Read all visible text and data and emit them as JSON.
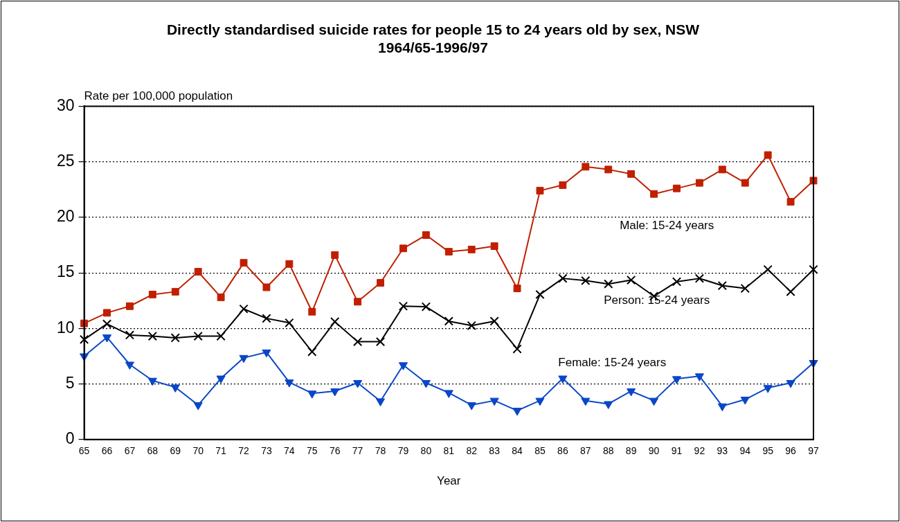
{
  "chart_data": {
    "type": "line",
    "title": "Directly standardised suicide rates for people 15 to 24 years old by sex, NSW\n1964/65-1996/97",
    "xlabel": "Year",
    "ylabel": "Rate per 100,000 population",
    "categories": [
      "65",
      "66",
      "67",
      "68",
      "69",
      "70",
      "71",
      "72",
      "73",
      "74",
      "75",
      "76",
      "77",
      "78",
      "79",
      "80",
      "81",
      "82",
      "83",
      "84",
      "85",
      "86",
      "87",
      "88",
      "89",
      "90",
      "91",
      "92",
      "93",
      "94",
      "95",
      "96",
      "97"
    ],
    "series": [
      {
        "name": "Male: 15-24 years",
        "color": "#c01f00",
        "marker": "square",
        "values": [
          10.45,
          11.4,
          12.0,
          13.05,
          13.3,
          15.1,
          12.8,
          15.9,
          13.7,
          15.8,
          11.5,
          16.6,
          12.4,
          14.1,
          17.2,
          18.4,
          16.9,
          17.1,
          17.4,
          13.6,
          22.4,
          22.9,
          24.55,
          24.3,
          23.9,
          22.1,
          22.6,
          23.1,
          24.3,
          23.1,
          25.6,
          21.4,
          23.3
        ]
      },
      {
        "name": "Person: 15-24 years",
        "color": "#000000",
        "marker": "cross",
        "values": [
          9.0,
          10.4,
          9.4,
          9.3,
          9.15,
          9.3,
          9.3,
          11.75,
          10.9,
          10.5,
          7.9,
          10.6,
          8.8,
          8.8,
          12.0,
          11.95,
          10.65,
          10.25,
          10.65,
          8.15,
          13.05,
          14.5,
          14.3,
          14.0,
          14.35,
          12.9,
          14.2,
          14.5,
          13.85,
          13.6,
          15.3,
          13.3,
          15.3
        ]
      },
      {
        "name": "Female: 15-24 years",
        "color": "#0a46c8",
        "marker": "triangle",
        "values": [
          7.5,
          9.2,
          6.75,
          5.3,
          4.7,
          3.1,
          5.5,
          7.35,
          7.85,
          5.15,
          4.15,
          4.35,
          5.1,
          3.45,
          6.7,
          5.1,
          4.2,
          3.1,
          3.5,
          2.6,
          3.5,
          5.5,
          3.5,
          3.2,
          4.35,
          3.5,
          5.45,
          5.7,
          3.0,
          3.6,
          4.65,
          5.1,
          6.9
        ]
      }
    ],
    "ylim": [
      0,
      30
    ],
    "yticks": [
      0,
      5,
      10,
      15,
      20,
      25,
      30
    ],
    "grid": "y",
    "legend": false
  }
}
